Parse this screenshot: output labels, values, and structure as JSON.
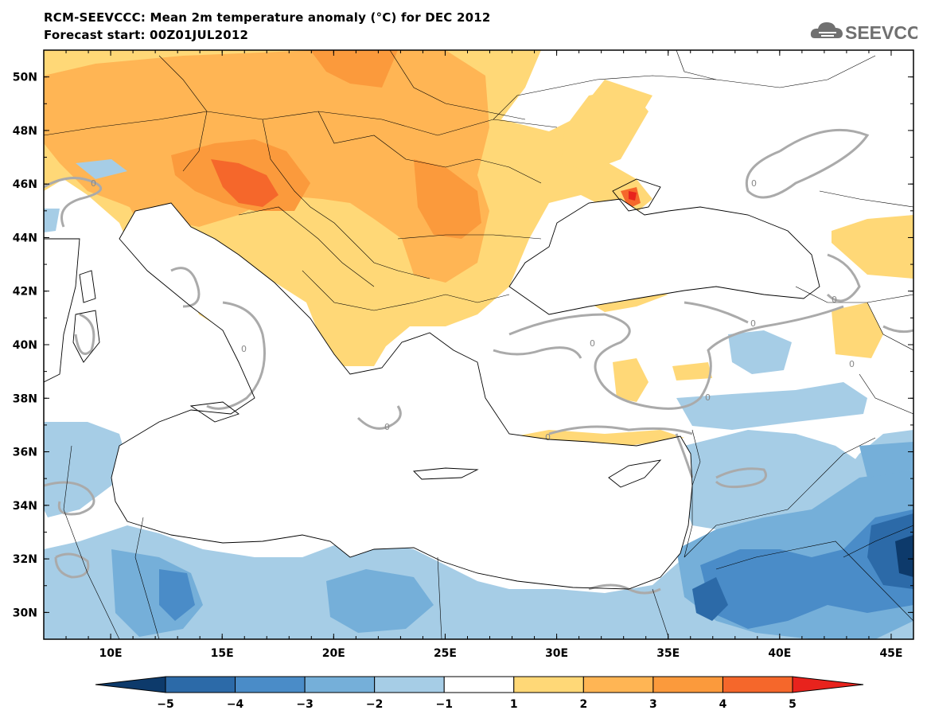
{
  "header": {
    "title": "RCM-SEEVCCC: Mean 2m temperature anomaly (°C) for DEC 2012",
    "subtitle": "Forecast start: 00Z01JUL2012",
    "logo_text": "SEEVCCC"
  },
  "map": {
    "lon_range": [
      7,
      46
    ],
    "lat_range": [
      29,
      51
    ],
    "lat_ticks": [
      "30N",
      "32N",
      "34N",
      "36N",
      "38N",
      "40N",
      "42N",
      "44N",
      "46N",
      "48N",
      "50N"
    ],
    "lon_ticks": [
      "10E",
      "15E",
      "20E",
      "25E",
      "30E",
      "35E",
      "40E",
      "45E"
    ],
    "contour_label": "0",
    "colors": {
      "cold5": "#0d3a6b",
      "cold4": "#2c6aa8",
      "cold3": "#4a8cc8",
      "cold2": "#75afd9",
      "cold1": "#a6cde6",
      "neutral": "#ffffff",
      "warm1": "#ffd877",
      "warm2": "#ffb554",
      "warm3": "#fb9a3c",
      "warm4": "#f5672b",
      "warm5": "#e8231d",
      "contour": "#aaaaaa",
      "border": "#000000"
    }
  },
  "colorbar": {
    "labels": [
      "−5",
      "−4",
      "−3",
      "−2",
      "−1",
      "1",
      "2",
      "3",
      "4",
      "5"
    ],
    "colors": [
      "#0d3a6b",
      "#2c6aa8",
      "#4a8cc8",
      "#75afd9",
      "#a6cde6",
      "#ffffff",
      "#ffd877",
      "#ffb554",
      "#fb9a3c",
      "#f5672b",
      "#e8231d"
    ]
  }
}
